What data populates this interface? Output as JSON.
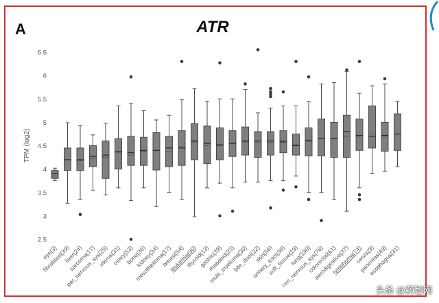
{
  "panel_label": "A",
  "watermark": "头条 @药智网",
  "colors": {
    "frame": "#d32f2f",
    "box_fill": "#7f7f7f",
    "box_stroke": "#4a4a4a",
    "point": "#3a3a3a",
    "axis_text": "#555555",
    "accent_arc": "#1e88c8"
  },
  "chart_data": {
    "type": "box",
    "title": "ATR",
    "xlabel": "",
    "ylabel": "TPM (log2)",
    "ylim": [
      2.3,
      6.7
    ],
    "yticks": [
      2.5,
      3,
      3.5,
      4,
      4.5,
      5,
      5.5,
      6,
      6.5
    ],
    "grid": false,
    "categories": [
      "eye(3)",
      "fibroblast(39)",
      "liver(24)",
      "sarcoma(17)",
      "per_nervous_sys(25)",
      "uterus(31)",
      "ovary(53)",
      "bone(36)",
      "kidney(34)",
      "mesothelioma(17)",
      "breast(54)",
      "leukemia(90)",
      "thyroid(13)",
      "gastric(39)",
      "rhabdoid(23)",
      "multi_myeloma(30)",
      "bile_duct(22)",
      "skin(56)",
      "urinary_tract(36)",
      "soft_tissue(19)",
      "lung(190)",
      "cen_nervous_sys(76)",
      "colorectal(61)",
      "aerodigestive(37)",
      "lymphoma(74)",
      "cervix(9)",
      "pancreas(49)",
      "esophagus(31)"
    ],
    "underlined_categories": [
      "leukemia(90)",
      "lymphoma(74)"
    ],
    "boxes": [
      {
        "min": 3.75,
        "q1": 3.8,
        "median": 3.9,
        "mean": 3.85,
        "q3": 3.97,
        "max": 4.02,
        "outliers": []
      },
      {
        "min": 3.27,
        "q1": 3.97,
        "median": 4.2,
        "mean": 4.2,
        "q3": 4.45,
        "max": 4.99,
        "outliers": []
      },
      {
        "min": 3.35,
        "q1": 3.97,
        "median": 4.2,
        "mean": 4.18,
        "q3": 4.45,
        "max": 4.93,
        "outliers": [
          3.03
        ]
      },
      {
        "min": 3.55,
        "q1": 4.05,
        "median": 4.27,
        "mean": 4.22,
        "q3": 4.5,
        "max": 4.73,
        "outliers": []
      },
      {
        "min": 3.45,
        "q1": 3.8,
        "median": 4.3,
        "mean": 4.25,
        "q3": 4.6,
        "max": 4.98,
        "outliers": []
      },
      {
        "min": 3.6,
        "q1": 4.0,
        "median": 4.38,
        "mean": 4.35,
        "q3": 4.65,
        "max": 5.35,
        "outliers": []
      },
      {
        "min": 3.33,
        "q1": 4.08,
        "median": 4.35,
        "mean": 4.3,
        "q3": 4.7,
        "max": 5.4,
        "outliers": [
          5.97,
          2.5
        ]
      },
      {
        "min": 3.6,
        "q1": 4.08,
        "median": 4.4,
        "mean": 4.38,
        "q3": 4.68,
        "max": 5.25,
        "outliers": []
      },
      {
        "min": 3.2,
        "q1": 3.98,
        "median": 4.4,
        "mean": 4.4,
        "q3": 4.78,
        "max": 5.05,
        "outliers": []
      },
      {
        "min": 3.5,
        "q1": 4.05,
        "median": 4.45,
        "mean": 4.38,
        "q3": 4.7,
        "max": 5.15,
        "outliers": []
      },
      {
        "min": 3.35,
        "q1": 4.08,
        "median": 4.45,
        "mean": 4.48,
        "q3": 4.82,
        "max": 5.48,
        "outliers": [
          6.3
        ]
      },
      {
        "min": 2.98,
        "q1": 4.2,
        "median": 4.6,
        "mean": 4.58,
        "q3": 4.97,
        "max": 5.72,
        "outliers": []
      },
      {
        "min": 3.6,
        "q1": 4.12,
        "median": 4.55,
        "mean": 4.5,
        "q3": 4.92,
        "max": 5.45,
        "outliers": []
      },
      {
        "min": 3.7,
        "q1": 4.2,
        "median": 4.52,
        "mean": 4.5,
        "q3": 4.88,
        "max": 5.5,
        "outliers": [
          6.27,
          3.0
        ]
      },
      {
        "min": 3.6,
        "q1": 4.27,
        "median": 4.55,
        "mean": 4.55,
        "q3": 4.82,
        "max": 5.5,
        "outliers": [
          3.1
        ]
      },
      {
        "min": 3.72,
        "q1": 4.3,
        "median": 4.6,
        "mean": 4.58,
        "q3": 4.9,
        "max": 5.7,
        "outliers": [
          5.82
        ]
      },
      {
        "min": 3.72,
        "q1": 4.25,
        "median": 4.6,
        "mean": 4.57,
        "q3": 4.8,
        "max": 5.2,
        "outliers": [
          6.55
        ]
      },
      {
        "min": 3.75,
        "q1": 4.3,
        "median": 4.6,
        "mean": 4.57,
        "q3": 4.8,
        "max": 5.3,
        "outliers": [
          5.55,
          5.6,
          5.65,
          5.72,
          3.17
        ]
      },
      {
        "min": 3.75,
        "q1": 4.35,
        "median": 4.58,
        "mean": 4.6,
        "q3": 4.82,
        "max": 5.35,
        "outliers": [
          5.65,
          3.55
        ]
      },
      {
        "min": 3.85,
        "q1": 4.3,
        "median": 4.5,
        "mean": 4.52,
        "q3": 4.75,
        "max": 5.35,
        "outliers": [
          6.3,
          3.62
        ]
      },
      {
        "min": 3.5,
        "q1": 4.28,
        "median": 4.6,
        "mean": 4.62,
        "q3": 4.88,
        "max": 5.45,
        "outliers": [
          5.97,
          3.35
        ]
      },
      {
        "min": 3.5,
        "q1": 4.28,
        "median": 4.65,
        "mean": 4.65,
        "q3": 5.07,
        "max": 5.82,
        "outliers": [
          2.9
        ]
      },
      {
        "min": 3.35,
        "q1": 4.25,
        "median": 4.65,
        "mean": 4.65,
        "q3": 5.0,
        "max": 5.85,
        "outliers": []
      },
      {
        "min": 3.1,
        "q1": 4.25,
        "median": 4.8,
        "mean": 4.7,
        "q3": 5.15,
        "max": 6.08,
        "outliers": [
          6.12
        ]
      },
      {
        "min": 3.6,
        "q1": 4.4,
        "median": 4.72,
        "mean": 4.7,
        "q3": 5.07,
        "max": 5.62,
        "outliers": [
          6.3,
          3.45,
          3.35
        ]
      },
      {
        "min": 3.9,
        "q1": 4.45,
        "median": 4.7,
        "mean": 4.75,
        "q3": 5.35,
        "max": 5.78,
        "outliers": []
      },
      {
        "min": 3.95,
        "q1": 4.38,
        "median": 4.72,
        "mean": 4.7,
        "q3": 5.0,
        "max": 5.82,
        "outliers": [
          5.93
        ]
      },
      {
        "min": 4.05,
        "q1": 4.4,
        "median": 4.75,
        "mean": 4.75,
        "q3": 5.18,
        "max": 5.45,
        "outliers": []
      }
    ]
  }
}
